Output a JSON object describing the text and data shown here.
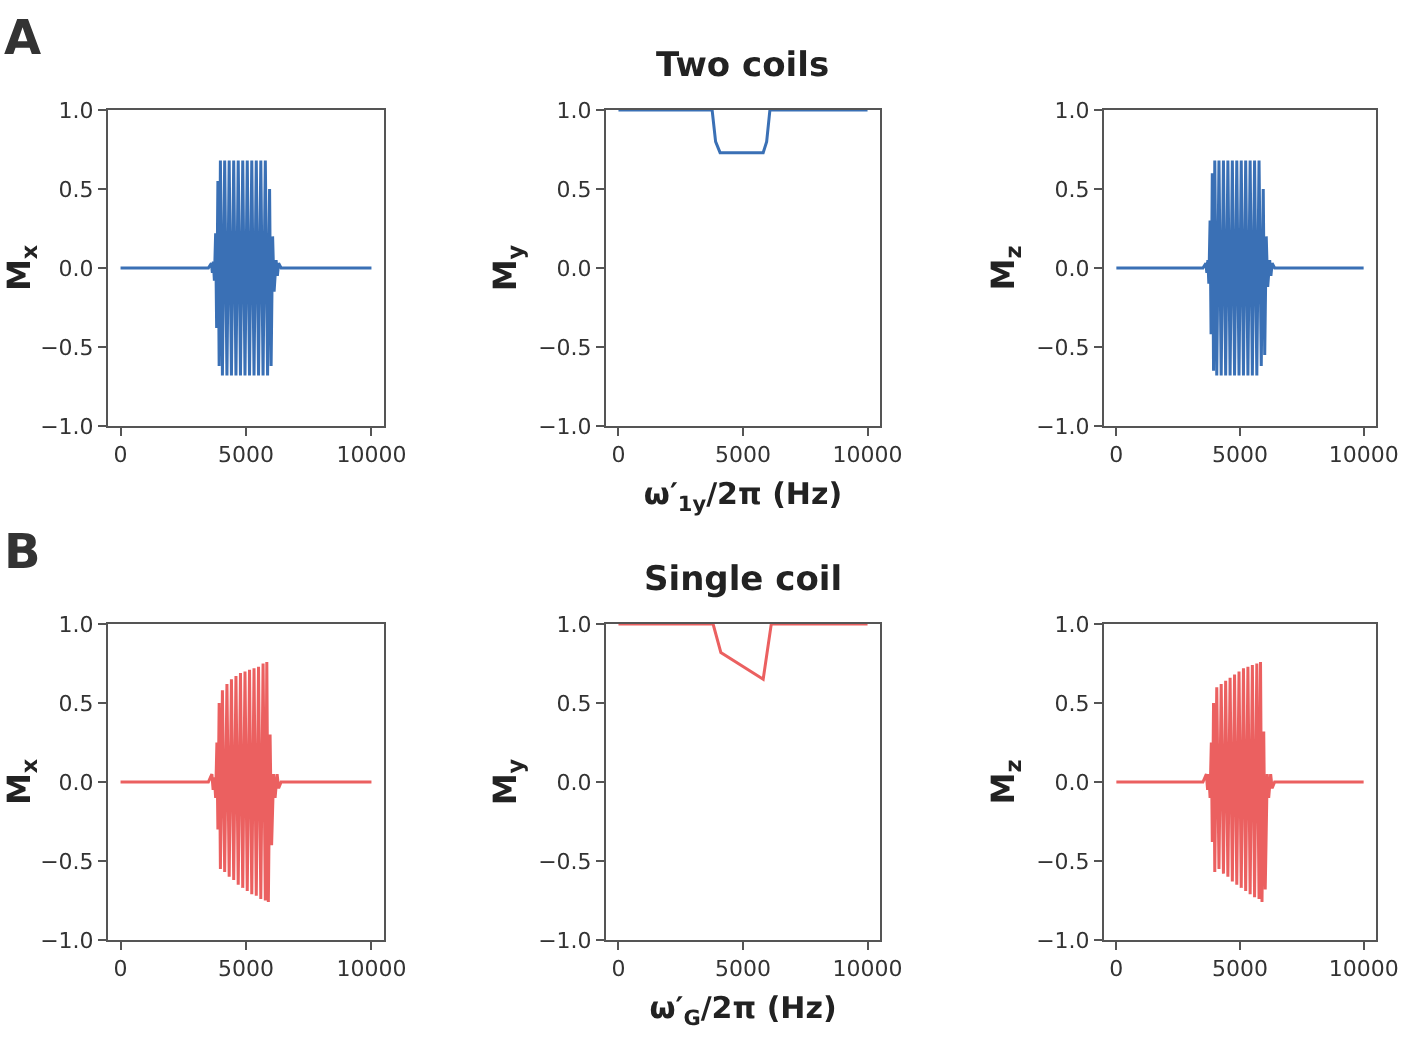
{
  "chart_data": [
    {
      "type": "line",
      "ylabel": "M$_{x}$",
      "annotations": [
        "A"
      ],
      "color": "#3a70b5",
      "xlim": [
        -500,
        10500
      ],
      "ylim": [
        -1,
        1
      ],
      "xticks": [
        0,
        5000,
        10000
      ],
      "yticks": [
        {
          "value": -1,
          "label": "−1.0"
        },
        {
          "value": -0.5,
          "label": "−0.5"
        },
        {
          "value": 0,
          "label": "0.0"
        },
        {
          "value": 0.5,
          "label": "0.5"
        },
        {
          "value": 1,
          "label": "1.0"
        }
      ],
      "x": [
        0,
        3500,
        3620,
        3660,
        3700,
        3740,
        3790,
        3830,
        3880,
        3930,
        3980,
        4060,
        4150,
        4240,
        4330,
        4420,
        4510,
        4600,
        4690,
        4780,
        4870,
        4960,
        5050,
        5140,
        5230,
        5320,
        5410,
        5500,
        5590,
        5680,
        5770,
        5860,
        5940,
        6000,
        6060,
        6120,
        6200,
        6250,
        6300,
        6400,
        10000
      ],
      "values": [
        0,
        0,
        0.03,
        -0.03,
        0.04,
        -0.08,
        0.22,
        -0.38,
        0.55,
        -0.62,
        0.68,
        -0.68,
        0.68,
        -0.68,
        0.68,
        -0.68,
        0.68,
        -0.68,
        0.68,
        -0.68,
        0.68,
        -0.68,
        0.68,
        -0.68,
        0.68,
        -0.68,
        0.68,
        -0.68,
        0.68,
        -0.68,
        0.68,
        -0.68,
        0.5,
        -0.62,
        0.2,
        -0.15,
        0.05,
        -0.05,
        0.03,
        0,
        0
      ]
    },
    {
      "type": "line",
      "title": "Two coils",
      "ylabel": "M$_{y}$",
      "xlabel": "ω′$_{1y}$/2π (Hz)",
      "color": "#3a70b5",
      "xlim": [
        -500,
        10500
      ],
      "ylim": [
        -1,
        1
      ],
      "xticks": [
        0,
        5000,
        10000
      ],
      "yticks": [
        {
          "value": -1,
          "label": "−1.0"
        },
        {
          "value": -0.5,
          "label": "−0.5"
        },
        {
          "value": 0,
          "label": "0.0"
        },
        {
          "value": 0.5,
          "label": "0.5"
        },
        {
          "value": 1,
          "label": "1.0"
        }
      ],
      "x": [
        0,
        3760,
        3900,
        4080,
        5810,
        5950,
        6080,
        10000
      ],
      "values": [
        1,
        1,
        0.8,
        0.73,
        0.73,
        0.8,
        1,
        1
      ]
    },
    {
      "type": "line",
      "ylabel": "M$_{z}$",
      "color": "#3a70b5",
      "xlim": [
        -500,
        10500
      ],
      "ylim": [
        -1,
        1
      ],
      "xticks": [
        0,
        5000,
        10000
      ],
      "yticks": [
        {
          "value": -1,
          "label": "−1.0"
        },
        {
          "value": -0.5,
          "label": "−0.5"
        },
        {
          "value": 0,
          "label": "0.0"
        },
        {
          "value": 0.5,
          "label": "0.5"
        },
        {
          "value": 1,
          "label": "1.0"
        }
      ],
      "x": [
        0,
        3500,
        3620,
        3660,
        3700,
        3740,
        3790,
        3830,
        3880,
        3930,
        3980,
        4060,
        4150,
        4240,
        4330,
        4420,
        4510,
        4600,
        4690,
        4780,
        4870,
        4960,
        5050,
        5140,
        5230,
        5320,
        5410,
        5500,
        5590,
        5680,
        5770,
        5860,
        5940,
        6000,
        6060,
        6120,
        6200,
        6250,
        6300,
        6400,
        10000
      ],
      "values": [
        0,
        0,
        0.03,
        -0.03,
        0.05,
        -0.1,
        0.3,
        -0.42,
        0.6,
        -0.65,
        0.68,
        -0.68,
        0.68,
        -0.68,
        0.68,
        -0.68,
        0.68,
        -0.68,
        0.68,
        -0.68,
        0.68,
        -0.68,
        0.68,
        -0.68,
        0.68,
        -0.68,
        0.68,
        -0.68,
        0.68,
        -0.68,
        0.68,
        -0.62,
        0.5,
        -0.55,
        0.2,
        -0.12,
        0.05,
        -0.05,
        0.03,
        0,
        0
      ]
    },
    {
      "type": "line",
      "ylabel": "M$_{x}$",
      "annotations": [
        "B"
      ],
      "color": "#eb6060",
      "xlim": [
        -500,
        10500
      ],
      "ylim": [
        -1,
        1
      ],
      "xticks": [
        0,
        5000,
        10000
      ],
      "yticks": [
        {
          "value": -1,
          "label": "−1.0"
        },
        {
          "value": -0.5,
          "label": "−0.5"
        },
        {
          "value": 0,
          "label": "0.0"
        },
        {
          "value": 0.5,
          "label": "0.5"
        },
        {
          "value": 1,
          "label": "1.0"
        }
      ],
      "x": [
        0,
        3500,
        3640,
        3690,
        3740,
        3790,
        3840,
        3880,
        3930,
        3980,
        4060,
        4150,
        4240,
        4330,
        4420,
        4510,
        4600,
        4690,
        4780,
        4870,
        4960,
        5050,
        5140,
        5230,
        5320,
        5410,
        5500,
        5590,
        5680,
        5770,
        5830,
        5890,
        5960,
        6020,
        6100,
        6160,
        6240,
        6300,
        6400,
        10000
      ],
      "values": [
        0,
        0,
        0.05,
        -0.05,
        0.03,
        -0.1,
        0.25,
        -0.3,
        0.5,
        -0.55,
        0.58,
        -0.57,
        0.62,
        -0.6,
        0.65,
        -0.62,
        0.67,
        -0.65,
        0.69,
        -0.67,
        0.7,
        -0.69,
        0.71,
        -0.71,
        0.72,
        -0.72,
        0.73,
        -0.74,
        0.75,
        -0.75,
        0.76,
        -0.76,
        0.3,
        -0.4,
        0.05,
        -0.1,
        0.05,
        -0.04,
        0,
        0
      ]
    },
    {
      "type": "line",
      "title": "Single coil",
      "ylabel": "M$_{y}$",
      "xlabel": "ω′$_{G}$/2π (Hz)",
      "color": "#eb6060",
      "xlim": [
        -500,
        10500
      ],
      "ylim": [
        -1,
        1
      ],
      "xticks": [
        0,
        5000,
        10000
      ],
      "yticks": [
        {
          "value": -1,
          "label": "−1.0"
        },
        {
          "value": -0.5,
          "label": "−0.5"
        },
        {
          "value": 0,
          "label": "0.0"
        },
        {
          "value": 0.5,
          "label": "0.5"
        },
        {
          "value": 1,
          "label": "1.0"
        }
      ],
      "x": [
        0,
        3800,
        4110,
        5810,
        6135,
        10000
      ],
      "values": [
        1,
        1,
        0.82,
        0.65,
        1,
        1
      ]
    },
    {
      "type": "line",
      "ylabel": "M$_{z}$",
      "color": "#eb6060",
      "xlim": [
        -500,
        10500
      ],
      "ylim": [
        -1,
        1
      ],
      "xticks": [
        0,
        5000,
        10000
      ],
      "yticks": [
        {
          "value": -1,
          "label": "−1.0"
        },
        {
          "value": -0.5,
          "label": "−0.5"
        },
        {
          "value": 0,
          "label": "0.0"
        },
        {
          "value": 0.5,
          "label": "0.5"
        },
        {
          "value": 1,
          "label": "1.0"
        }
      ],
      "x": [
        0,
        3500,
        3640,
        3690,
        3740,
        3790,
        3840,
        3880,
        3930,
        3980,
        4060,
        4150,
        4240,
        4330,
        4420,
        4510,
        4600,
        4690,
        4780,
        4870,
        4960,
        5050,
        5140,
        5230,
        5320,
        5410,
        5500,
        5590,
        5680,
        5770,
        5830,
        5890,
        5960,
        6020,
        6100,
        6160,
        6240,
        6300,
        6400,
        10000
      ],
      "values": [
        0,
        0,
        0.05,
        -0.05,
        0.05,
        -0.1,
        0.25,
        -0.38,
        0.5,
        -0.57,
        0.6,
        -0.55,
        0.62,
        -0.58,
        0.64,
        -0.6,
        0.66,
        -0.63,
        0.68,
        -0.65,
        0.7,
        -0.67,
        0.72,
        -0.69,
        0.73,
        -0.71,
        0.74,
        -0.73,
        0.75,
        -0.74,
        0.76,
        -0.76,
        0.32,
        -0.68,
        0.05,
        -0.1,
        0.05,
        -0.04,
        0,
        0
      ]
    }
  ]
}
